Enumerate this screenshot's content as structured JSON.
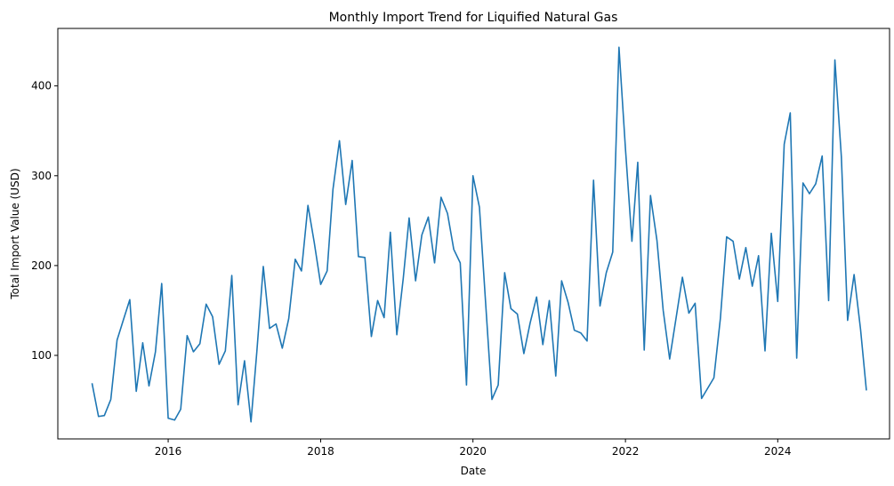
{
  "chart_data": {
    "type": "line",
    "title": "Monthly Import Trend for Liquified Natural Gas",
    "xlabel": "Date",
    "ylabel": "Total Import Value (USD)",
    "grid": false,
    "legend": "none",
    "x_ticks": [
      "2016",
      "2018",
      "2020",
      "2022",
      "2024"
    ],
    "y_ticks": [
      100,
      200,
      300,
      400
    ],
    "xlim": [
      "2014-07-21",
      "2025-06-20"
    ],
    "ylim": [
      7,
      464
    ],
    "series": [
      {
        "color": "#1f77b4",
        "x": [
          "2015-01",
          "2015-02",
          "2015-03",
          "2015-04",
          "2015-05",
          "2015-06",
          "2015-07",
          "2015-08",
          "2015-09",
          "2015-10",
          "2015-11",
          "2015-12",
          "2016-01",
          "2016-02",
          "2016-03",
          "2016-04",
          "2016-05",
          "2016-06",
          "2016-07",
          "2016-08",
          "2016-09",
          "2016-10",
          "2016-11",
          "2016-12",
          "2017-01",
          "2017-02",
          "2017-03",
          "2017-04",
          "2017-05",
          "2017-06",
          "2017-07",
          "2017-08",
          "2017-09",
          "2017-10",
          "2017-11",
          "2017-12",
          "2018-01",
          "2018-02",
          "2018-03",
          "2018-04",
          "2018-05",
          "2018-06",
          "2018-07",
          "2018-08",
          "2018-09",
          "2018-10",
          "2018-11",
          "2018-12",
          "2019-01",
          "2019-02",
          "2019-03",
          "2019-04",
          "2019-05",
          "2019-06",
          "2019-07",
          "2019-08",
          "2019-09",
          "2019-10",
          "2019-11",
          "2019-12",
          "2020-01",
          "2020-02",
          "2020-03",
          "2020-04",
          "2020-05",
          "2020-06",
          "2020-07",
          "2020-08",
          "2020-09",
          "2020-10",
          "2020-11",
          "2020-12",
          "2021-01",
          "2021-02",
          "2021-03",
          "2021-04",
          "2021-05",
          "2021-06",
          "2021-07",
          "2021-08",
          "2021-09",
          "2021-10",
          "2021-11",
          "2021-12",
          "2022-01",
          "2022-02",
          "2022-03",
          "2022-04",
          "2022-05",
          "2022-06",
          "2022-07",
          "2022-08",
          "2022-09",
          "2022-10",
          "2022-11",
          "2022-12",
          "2023-01",
          "2023-03",
          "2023-04",
          "2023-05",
          "2023-06",
          "2023-07",
          "2023-08",
          "2023-09",
          "2023-10",
          "2023-11",
          "2023-12",
          "2024-01",
          "2024-02",
          "2024-03",
          "2024-04",
          "2024-05",
          "2024-06",
          "2024-07",
          "2024-08",
          "2024-09",
          "2024-10",
          "2024-11",
          "2024-12",
          "2025-01",
          "2025-02",
          "2025-03"
        ],
        "values": [
          69,
          32,
          33,
          51,
          117,
          140,
          162,
          60,
          114,
          66,
          104,
          180,
          30,
          28,
          40,
          122,
          104,
          113,
          157,
          143,
          90,
          105,
          189,
          45,
          94,
          26,
          104,
          199,
          130,
          135,
          108,
          141,
          207,
          194,
          267,
          226,
          179,
          194,
          285,
          339,
          268,
          317,
          210,
          209,
          121,
          161,
          142,
          237,
          123,
          186,
          253,
          183,
          234,
          254,
          203,
          276,
          258,
          218,
          203,
          67,
          300,
          265,
          161,
          51,
          67,
          192,
          152,
          146,
          102,
          136,
          165,
          112,
          161,
          77,
          183,
          159,
          128,
          125,
          116,
          295,
          155,
          192,
          215,
          443,
          330,
          227,
          315,
          106,
          278,
          228,
          150,
          96,
          142,
          187,
          147,
          158,
          52,
          75,
          141,
          232,
          227,
          185,
          220,
          177,
          211,
          105,
          236,
          160,
          335,
          370,
          97,
          292,
          280,
          291,
          322,
          161,
          429,
          321,
          139,
          190,
          129,
          61
        ]
      }
    ]
  }
}
